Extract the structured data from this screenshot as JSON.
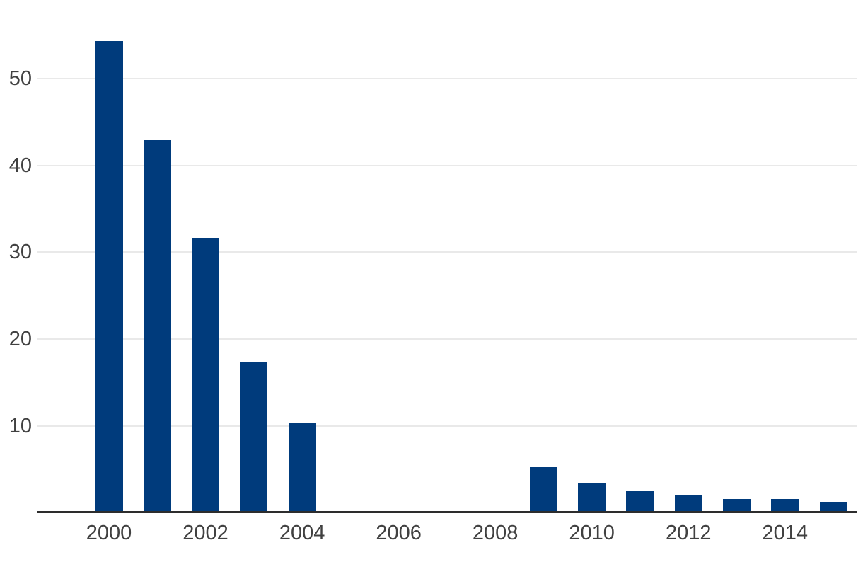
{
  "chart_data": {
    "type": "bar",
    "title": "",
    "xlabel": "",
    "ylabel": "",
    "categories": [
      2000,
      2001,
      2002,
      2003,
      2004,
      2005,
      2006,
      2007,
      2008,
      2009,
      2010,
      2011,
      2012,
      2013,
      2014,
      2015
    ],
    "values": [
      54.3,
      42.9,
      31.7,
      17.3,
      10.4,
      0,
      0,
      0,
      0,
      5.3,
      3.5,
      2.6,
      2.1,
      1.6,
      1.6,
      1.3
    ],
    "y_ticks": [
      10,
      20,
      30,
      40,
      50
    ],
    "x_tick_labels": [
      "2000",
      "2002",
      "2004",
      "2006",
      "2008",
      "2010",
      "2012",
      "2014"
    ],
    "ylim": [
      0,
      56
    ],
    "grid": true,
    "legend": false,
    "bar_color": "#003b7c"
  },
  "colors": {
    "background": "#ffffff",
    "bar": "#003b7c",
    "axis_line": "#2d2d2d",
    "gridline": "#e9e9e9",
    "tick_text": "#414141"
  }
}
